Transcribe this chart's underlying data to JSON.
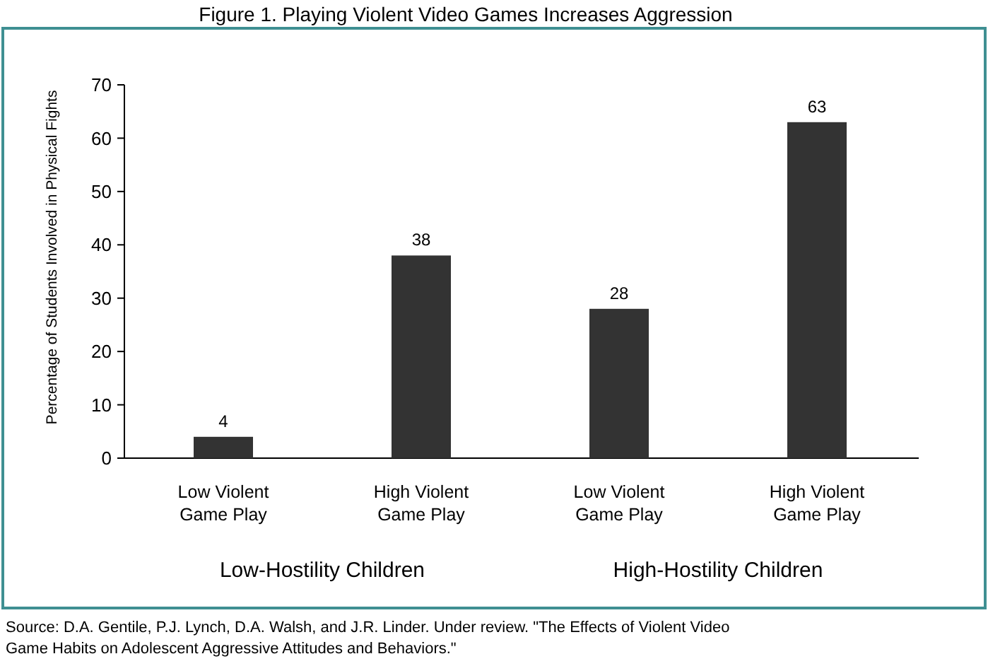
{
  "chart_data": {
    "type": "bar",
    "title": "Figure 1. Playing Violent Video Games Increases Aggression",
    "ylabel": "Percentage of Students Involved in Physical Fights",
    "categories": [
      "Low Violent\nGame Play",
      "High Violent\nGame Play",
      "Low Violent\nGame Play",
      "High Violent\nGame Play"
    ],
    "values": [
      4,
      38,
      28,
      63
    ],
    "color": "#333333",
    "data_labels": true,
    "ylim": [
      0,
      70
    ],
    "yticks": [
      0,
      10,
      20,
      30,
      40,
      50,
      60,
      70
    ],
    "grid": false,
    "annotations": [
      "Low-Hostility Children",
      "High-Hostility Children",
      "Source: D.A. Gentile, P.J. Lynch, D.A. Walsh, and J.R. Linder. Under review. \"The Effects of Violent Video Game Habits on Adolescent Aggressive Attitudes and Behaviors.\""
    ]
  }
}
